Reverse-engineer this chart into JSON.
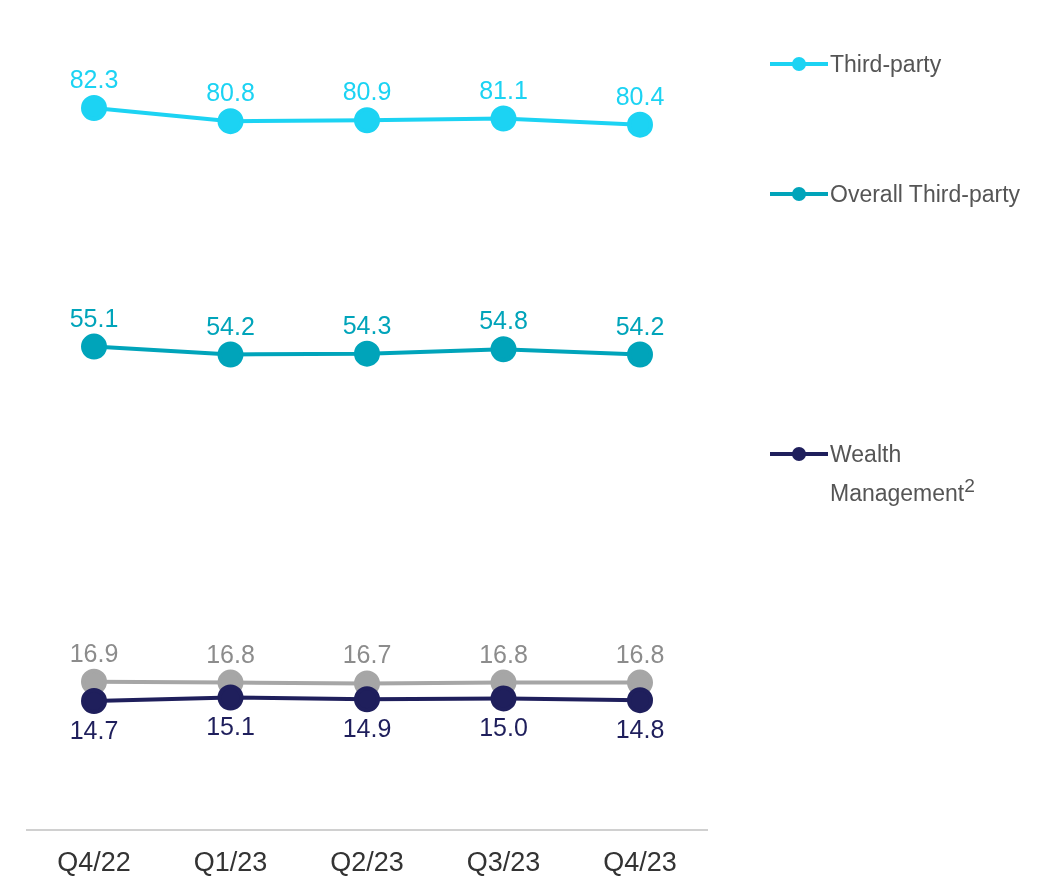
{
  "chart_data": {
    "type": "line",
    "categories": [
      "Q4/22",
      "Q1/23",
      "Q2/23",
      "Q3/23",
      "Q4/23"
    ],
    "series": [
      {
        "name": "Third-party",
        "color": "#1cd3f3",
        "values": [
          82.3,
          80.8,
          80.9,
          81.1,
          80.4
        ],
        "value_labels": [
          "82.3",
          "80.8",
          "80.9",
          "81.1",
          "80.4"
        ]
      },
      {
        "name": "Overall Third-party",
        "color": "#00a4ba",
        "values": [
          55.1,
          54.2,
          54.3,
          54.8,
          54.2
        ],
        "value_labels": [
          "55.1",
          "54.2",
          "54.3",
          "54.8",
          "54.2"
        ]
      },
      {
        "color": "#a6a6a6",
        "values": [
          16.9,
          16.8,
          16.7,
          16.8,
          16.8
        ],
        "value_labels": [
          "16.9",
          "16.8",
          "16.7",
          "16.8",
          "16.8"
        ]
      },
      {
        "name": "Wealth Management$^{2}$",
        "color": "#1f1f5c",
        "values": [
          14.7,
          15.1,
          14.9,
          15.0,
          14.8
        ],
        "value_labels": [
          "14.7",
          "15.1",
          "14.9",
          "15.0",
          "14.8"
        ]
      }
    ],
    "marker": "circle",
    "legend": "right",
    "grid": false
  }
}
